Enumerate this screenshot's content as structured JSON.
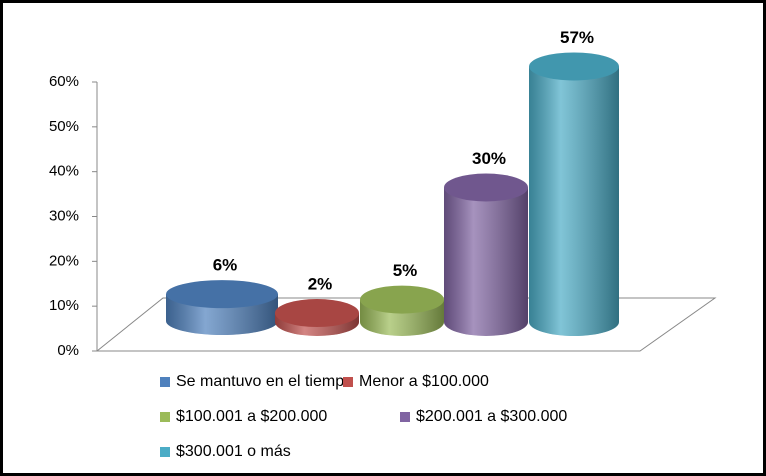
{
  "chart_data": {
    "type": "bar",
    "series": [
      {
        "name": "Se mantuvo en el tiempo",
        "color": "#4f81bd",
        "values": [
          6
        ],
        "value_labels": [
          "6%"
        ]
      },
      {
        "name": "Menor a $100.000",
        "color": "#c0504d",
        "values": [
          2
        ],
        "value_labels": [
          "2%"
        ]
      },
      {
        "name": "$100.001 a $200.000",
        "color": "#9bbb59",
        "values": [
          5
        ],
        "value_labels": [
          "5%"
        ]
      },
      {
        "name": "$200.001 a $300.000",
        "color": "#8064a2",
        "values": [
          30
        ],
        "value_labels": [
          "30%"
        ]
      },
      {
        "name": "$300.001 o más",
        "color": "#4bacc6",
        "values": [
          57
        ],
        "value_labels": [
          "57%"
        ]
      }
    ],
    "ylim": [
      0,
      60
    ],
    "yticks": [
      {
        "value": 0,
        "label": "0%"
      },
      {
        "value": 10,
        "label": "10%"
      },
      {
        "value": 20,
        "label": "20%"
      },
      {
        "value": 30,
        "label": "30%"
      },
      {
        "value": 40,
        "label": "40%"
      },
      {
        "value": 50,
        "label": "50%"
      },
      {
        "value": 60,
        "label": "60%"
      }
    ],
    "legend": "bottom"
  }
}
